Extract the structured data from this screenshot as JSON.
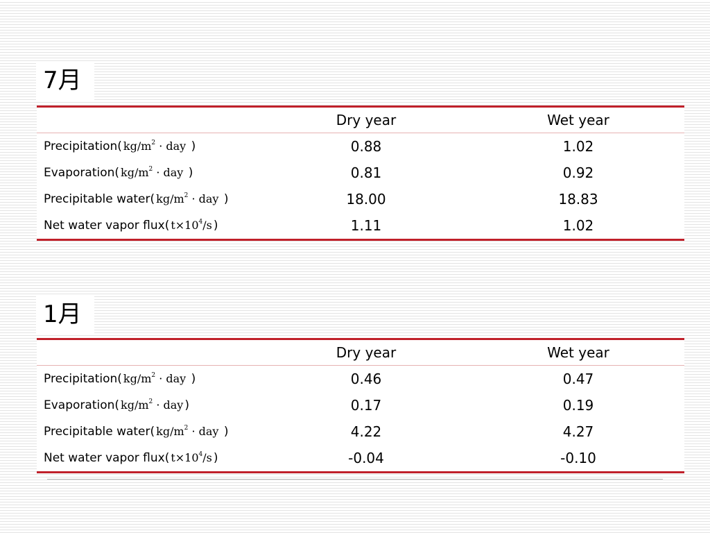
{
  "sections": [
    {
      "title": "7月",
      "headers": [
        "",
        "Dry year",
        "Wet year"
      ],
      "rows": [
        {
          "label": "Precipitation(",
          "unit": "kg/m",
          "unit_exp": "2",
          "unit_tail": " · day",
          "close": " )",
          "dry": "0.88",
          "wet": "1.02"
        },
        {
          "label": "Evaporation(",
          "unit": "kg/m",
          "unit_exp": "2",
          "unit_tail": " · day",
          "close": " )",
          "dry": "0.81",
          "wet": "0.92"
        },
        {
          "label": "Precipitable water(",
          "unit": "kg/m",
          "unit_exp": "2",
          "unit_tail": " · day",
          "close": " )",
          "dry": "18.00",
          "wet": "18.83"
        },
        {
          "label": "Net water vapor flux(",
          "unit": "t×10",
          "unit_exp": "4",
          "unit_tail": "/s",
          "close": ")",
          "dry": "1.11",
          "wet": "1.02"
        }
      ]
    },
    {
      "title": "1月",
      "headers": [
        "",
        "Dry year",
        "Wet year"
      ],
      "rows": [
        {
          "label": "Precipitation(",
          "unit": "kg/m",
          "unit_exp": "2",
          "unit_tail": " · day",
          "close": " )",
          "dry": "0.46",
          "wet": "0.47"
        },
        {
          "label": "Evaporation(",
          "unit": "kg/m",
          "unit_exp": "2",
          "unit_tail": " · day",
          "close": ")",
          "dry": "0.17",
          "wet": "0.19"
        },
        {
          "label": "Precipitable water(",
          "unit": "kg/m",
          "unit_exp": "2",
          "unit_tail": " · day",
          "close": " )",
          "dry": "4.22",
          "wet": "4.27"
        },
        {
          "label": "Net water vapor flux(",
          "unit": "t×10",
          "unit_exp": "4",
          "unit_tail": "/s",
          "close": ")",
          "dry": "-0.04",
          "wet": "-0.10"
        }
      ]
    }
  ]
}
